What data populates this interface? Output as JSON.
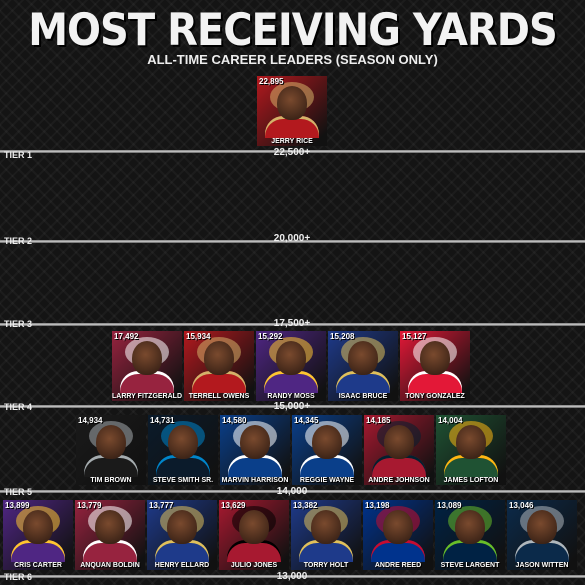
{
  "title": "MOST RECEIVING YARDS",
  "subtitle": "ALL-TIME CAREER LEADERS (SEASON ONLY)",
  "tiers": [
    {
      "name": "TIER 1",
      "value": "22,500+"
    },
    {
      "name": "TIER 2",
      "value": "20,000+"
    },
    {
      "name": "TIER 3",
      "value": "17,500+"
    },
    {
      "name": "TIER 4",
      "value": "15,000+"
    },
    {
      "name": "TIER 5",
      "value": "14,000"
    },
    {
      "name": "TIER 6",
      "value": "13,000"
    }
  ],
  "players": [
    {
      "name": "JERRY RICE",
      "yards": "22,895",
      "team_color": "#b3191e",
      "accent": "#d4b26a"
    },
    {
      "name": "LARRY FITZGERALD",
      "yards": "17,492",
      "team_color": "#97233f",
      "accent": "#ffffff"
    },
    {
      "name": "TERRELL OWENS",
      "yards": "15,934",
      "team_color": "#b3191e",
      "accent": "#d4b26a"
    },
    {
      "name": "RANDY MOSS",
      "yards": "15,292",
      "team_color": "#4f2683",
      "accent": "#ffc62f"
    },
    {
      "name": "ISAAC BRUCE",
      "yards": "15,208",
      "team_color": "#1e3a8a",
      "accent": "#e0c05a"
    },
    {
      "name": "TONY GONZALEZ",
      "yards": "15,127",
      "team_color": "#e31837",
      "accent": "#ffffff"
    },
    {
      "name": "TIM BROWN",
      "yards": "14,934",
      "team_color": "#1a1a1a",
      "accent": "#a5acaf"
    },
    {
      "name": "STEVE SMITH SR.",
      "yards": "14,731",
      "team_color": "#0b1b2b",
      "accent": "#0085ca"
    },
    {
      "name": "MARVIN HARRISON",
      "yards": "14,580",
      "team_color": "#0a3f8a",
      "accent": "#ffffff"
    },
    {
      "name": "REGGIE WAYNE",
      "yards": "14,345",
      "team_color": "#0a3f8a",
      "accent": "#ffffff"
    },
    {
      "name": "ANDRE JOHNSON",
      "yards": "14,185",
      "team_color": "#a71930",
      "accent": "#03202f"
    },
    {
      "name": "JAMES LOFTON",
      "yards": "14,004",
      "team_color": "#1f5233",
      "accent": "#ffb612"
    },
    {
      "name": "CRIS CARTER",
      "yards": "13,899",
      "team_color": "#4f2683",
      "accent": "#ffc62f"
    },
    {
      "name": "ANQUAN BOLDIN",
      "yards": "13,779",
      "team_color": "#97233f",
      "accent": "#ffffff"
    },
    {
      "name": "HENRY ELLARD",
      "yards": "13,777",
      "team_color": "#1e3a8a",
      "accent": "#e0c05a"
    },
    {
      "name": "JULIO JONES",
      "yards": "13,629",
      "team_color": "#a71930",
      "accent": "#000000"
    },
    {
      "name": "TORRY HOLT",
      "yards": "13,382",
      "team_color": "#1e3a8a",
      "accent": "#e0c05a"
    },
    {
      "name": "ANDRE REED",
      "yards": "13,198",
      "team_color": "#00338d",
      "accent": "#c60c30"
    },
    {
      "name": "STEVE LARGENT",
      "yards": "13,089",
      "team_color": "#002244",
      "accent": "#69be28"
    },
    {
      "name": "JASON WITTEN",
      "yards": "13,046",
      "team_color": "#0b2a4a",
      "accent": "#b0b7bc"
    }
  ]
}
